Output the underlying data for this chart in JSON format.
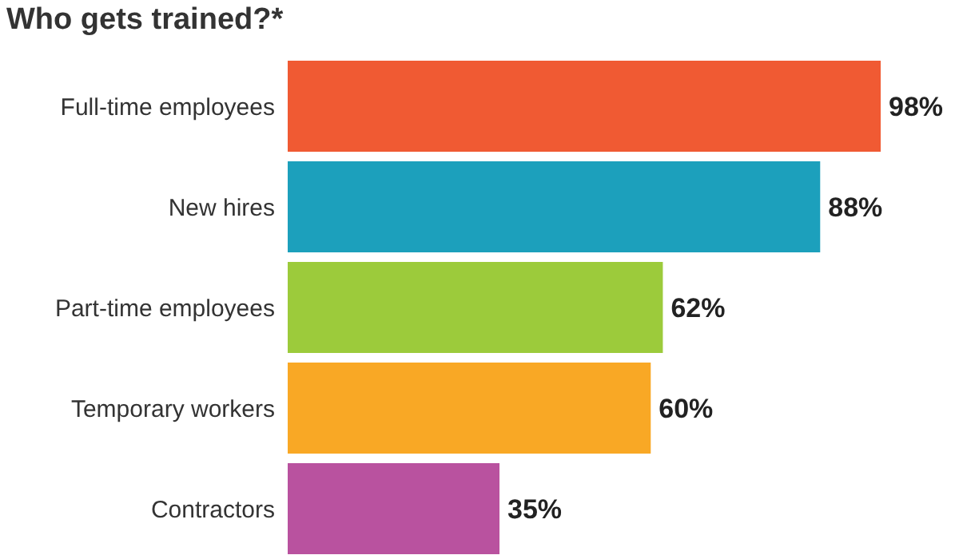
{
  "chart_data": {
    "type": "bar",
    "orientation": "horizontal",
    "title": "Who gets trained?*",
    "categories": [
      "Full-time employees",
      "New hires",
      "Part-time employees",
      "Temporary workers",
      "Contractors"
    ],
    "values": [
      98,
      88,
      62,
      60,
      35
    ],
    "colors": [
      "#f05a33",
      "#1ca0bc",
      "#9ccb3b",
      "#f9a825",
      "#b9529f"
    ],
    "value_labels": [
      "98%",
      "88%",
      "62%",
      "60%",
      "35%"
    ],
    "tick_labels": "y",
    "grid": false,
    "legend": false
  }
}
